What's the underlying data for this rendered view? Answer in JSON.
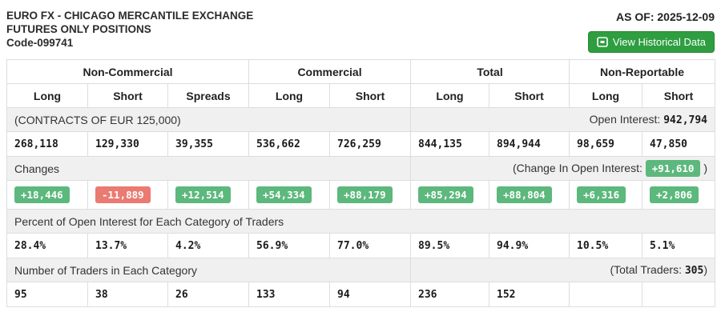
{
  "header": {
    "title_line1": "EURO FX - CHICAGO MERCANTILE EXCHANGE",
    "title_line2": "FUTURES ONLY POSITIONS",
    "title_line3": "Code-099741",
    "as_of": "AS OF: 2025-12-09",
    "view_historical_label": "View Historical Data",
    "view_historical_icon": "table-icon"
  },
  "colors": {
    "badge_green": "#5cb87c",
    "badge_red": "#ea7a72",
    "button_green": "#2e9e41",
    "label_row_gray": "#f0f0f0"
  },
  "table": {
    "groups": [
      {
        "label": "Non-Commercial",
        "span": 3
      },
      {
        "label": "Commercial",
        "span": 2
      },
      {
        "label": "Total",
        "span": 2
      },
      {
        "label": "Non-Reportable",
        "span": 2
      }
    ],
    "columns": [
      "Long",
      "Short",
      "Spreads",
      "Long",
      "Short",
      "Long",
      "Short",
      "Long",
      "Short"
    ],
    "contracts_row": {
      "label": "(CONTRACTS OF EUR 125,000)",
      "open_interest_label": "Open Interest: ",
      "open_interest_value": "942,794"
    },
    "positions": [
      "268,118",
      "129,330",
      "39,355",
      "536,662",
      "726,259",
      "844,135",
      "894,944",
      "98,659",
      "47,850"
    ],
    "changes_row": {
      "label": "Changes",
      "change_oi_prefix": "(Change In Open Interest: ",
      "change_oi_value": "+91,610",
      "change_oi_suffix": " )"
    },
    "changes": [
      {
        "value": "+18,446",
        "dir": "up"
      },
      {
        "value": "-11,889",
        "dir": "down"
      },
      {
        "value": "+12,514",
        "dir": "up"
      },
      {
        "value": "+54,334",
        "dir": "up"
      },
      {
        "value": "+88,179",
        "dir": "up"
      },
      {
        "value": "+85,294",
        "dir": "up"
      },
      {
        "value": "+88,804",
        "dir": "up"
      },
      {
        "value": "+6,316",
        "dir": "up"
      },
      {
        "value": "+2,806",
        "dir": "up"
      }
    ],
    "percent_row": {
      "label": "Percent of Open Interest for Each Category of Traders"
    },
    "percents": [
      "28.4%",
      "13.7%",
      "4.2%",
      "56.9%",
      "77.0%",
      "89.5%",
      "94.9%",
      "10.5%",
      "5.1%"
    ],
    "traders_row": {
      "label": "Number of Traders in Each Category",
      "total_prefix": "(Total Traders: ",
      "total_value": "305",
      "total_suffix": ")"
    },
    "traders": [
      "95",
      "38",
      "26",
      "133",
      "94",
      "236",
      "152",
      "",
      ""
    ]
  }
}
